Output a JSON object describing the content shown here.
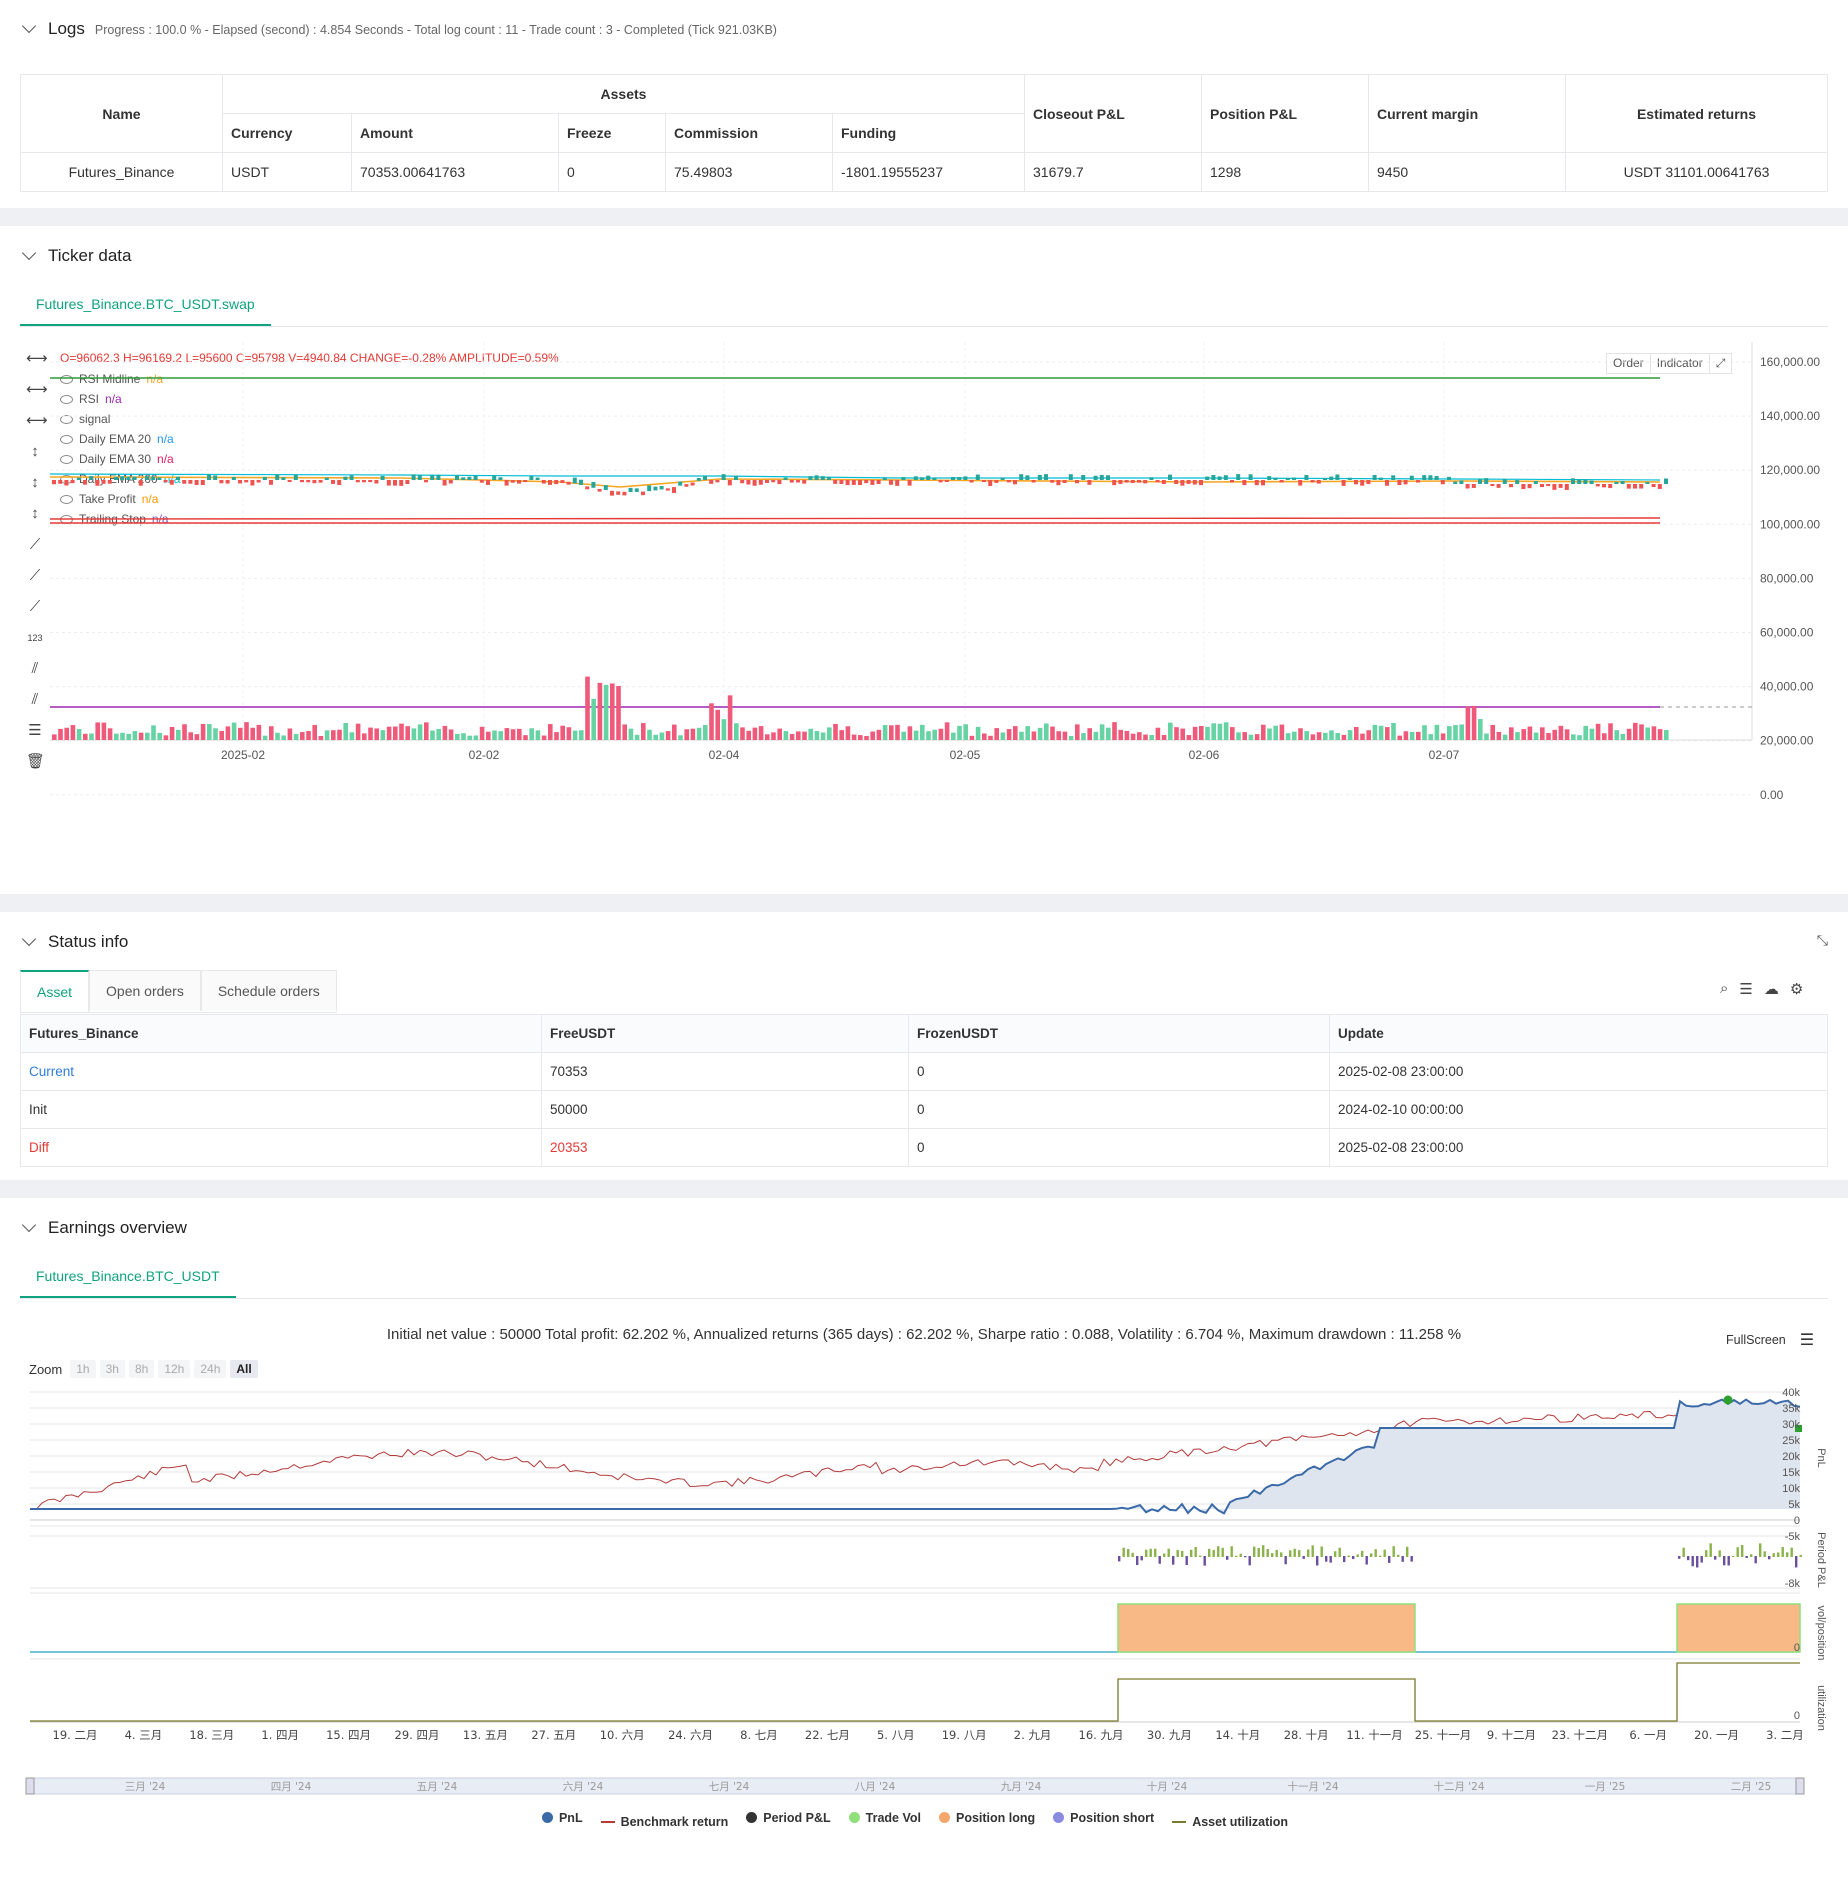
{
  "logs": {
    "title": "Logs",
    "progress": "Progress : 100.0 % - Elapsed (second) : 4.854  Seconds - Total log count : 11 - Trade count : 3 - Completed (Tick 921.03KB)",
    "headers": {
      "name": "Name",
      "assets": "Assets",
      "currency": "Currency",
      "amount": "Amount",
      "freeze": "Freeze",
      "commission": "Commission",
      "funding": "Funding",
      "closeout": "Closeout P&L",
      "position": "Position P&L",
      "margin": "Current margin",
      "returns": "Estimated returns"
    },
    "row": {
      "name": "Futures_Binance",
      "currency": "USDT",
      "amount": "70353.00641763",
      "freeze": "0",
      "commission": "75.49803",
      "funding": "-1801.19555237",
      "closeout": "31679.7",
      "position": "1298",
      "margin": "9450",
      "returns": "USDT 31101.00641763"
    }
  },
  "ticker": {
    "title": "Ticker data",
    "tab": "Futures_Binance.BTC_USDT.swap",
    "ohlc": "O=96062.3 H=96169.2 L=95600 C=95798 V=4940.84 CHANGE=-0.28% AMPLITUDE=0.59%",
    "legend": [
      {
        "label": "RSI Midline",
        "value": "n/a",
        "color": "#f5a623"
      },
      {
        "label": "RSI",
        "value": "n/a",
        "color": "#9c27b0"
      },
      {
        "label": "signal",
        "value": "",
        "color": "#4caf50"
      },
      {
        "label": "Daily EMA 20",
        "value": "n/a",
        "color": "#2196f3"
      },
      {
        "label": "Daily EMA 30",
        "value": "n/a",
        "color": "#e91e63"
      },
      {
        "label": "Daily EMA 200",
        "value": "n/a",
        "color": "#00bcd4"
      },
      {
        "label": "Take Profit",
        "value": "n/a",
        "color": "#ff9800"
      },
      {
        "label": "Trailing Stop",
        "value": "n/a",
        "color": "#7e57c2"
      }
    ],
    "buttons": {
      "order": "Order",
      "indicator": "Indicator"
    },
    "y_ticks": [
      "160,000.00",
      "140,000.00",
      "120,000.00",
      "100,000.00",
      "80,000.00",
      "60,000.00",
      "40,000.00",
      "20,000.00",
      "0.00"
    ],
    "x_ticks": [
      "2025-02",
      "02-02",
      "02-04",
      "02-05",
      "02-06",
      "02-07"
    ]
  },
  "status": {
    "title": "Status info",
    "tabs": [
      "Asset",
      "Open orders",
      "Schedule orders"
    ],
    "headers": [
      "Futures_Binance",
      "FreeUSDT",
      "FrozenUSDT",
      "Update"
    ],
    "rows": [
      {
        "label": "Current",
        "free": "70353",
        "frozen": "0",
        "update": "2025-02-08 23:00:00",
        "color": "#2e7dd7"
      },
      {
        "label": "Init",
        "free": "50000",
        "frozen": "0",
        "update": "2024-02-10 00:00:00",
        "color": "#333333"
      },
      {
        "label": "Diff",
        "free": "20353",
        "frozen": "0",
        "update": "2025-02-08 23:00:00",
        "color": "#e53935"
      }
    ]
  },
  "earnings": {
    "title": "Earnings overview",
    "tab": "Futures_Binance.BTC_USDT",
    "summary": "Initial net value : 50000  Total profit: 62.202 %, Annualized returns (365 days) : 62.202 %, Sharpe ratio : 0.088, Volatility : 6.704 %, Maximum drawdown : 11.258 %",
    "fullscreen": "FullScreen",
    "zoom_label": "Zoom",
    "zoom_options": [
      "1h",
      "3h",
      "8h",
      "12h",
      "24h",
      "All"
    ],
    "pnl_ticks": [
      "40k",
      "35k",
      "30k",
      "25k",
      "20k",
      "15k",
      "10k",
      "5k",
      "0",
      "-5k"
    ],
    "period_tick": "-8k",
    "axis_labels": [
      "PnL",
      "Period P&L",
      "vol/position",
      "utilization"
    ],
    "x_ticks": [
      "19. 二月",
      "4. 三月",
      "18. 三月",
      "1. 四月",
      "15. 四月",
      "29. 四月",
      "13. 五月",
      "27. 五月",
      "10. 六月",
      "24. 六月",
      "8. 七月",
      "22. 七月",
      "5. 八月",
      "19. 八月",
      "2. 九月",
      "16. 九月",
      "30. 九月",
      "14. 十月",
      "28. 十月",
      "11. 十一月",
      "25. 十一月",
      "9. 十二月",
      "23. 十二月",
      "6. 一月",
      "20. 一月",
      "3. 二月"
    ],
    "nav_ticks": [
      "三月 '24",
      "四月 '24",
      "五月 '24",
      "六月 '24",
      "七月 '24",
      "八月 '24",
      "九月 '24",
      "十月 '24",
      "十一月 '24",
      "十二月 '24",
      "一月 '25",
      "二月 '25"
    ],
    "legend": [
      {
        "label": "PnL",
        "color": "#3b6aa8",
        "kind": "dot"
      },
      {
        "label": "Benchmark return",
        "color": "#b23a3a",
        "kind": "line"
      },
      {
        "label": "Period P&L",
        "color": "#333333",
        "kind": "dot"
      },
      {
        "label": "Trade Vol",
        "color": "#8fe07a",
        "kind": "dot"
      },
      {
        "label": "Position long",
        "color": "#f5a76b",
        "kind": "dot"
      },
      {
        "label": "Position short",
        "color": "#8a8ae0",
        "kind": "dot"
      },
      {
        "label": "Asset utilization",
        "color": "#7a7a2a",
        "kind": "line"
      }
    ]
  }
}
